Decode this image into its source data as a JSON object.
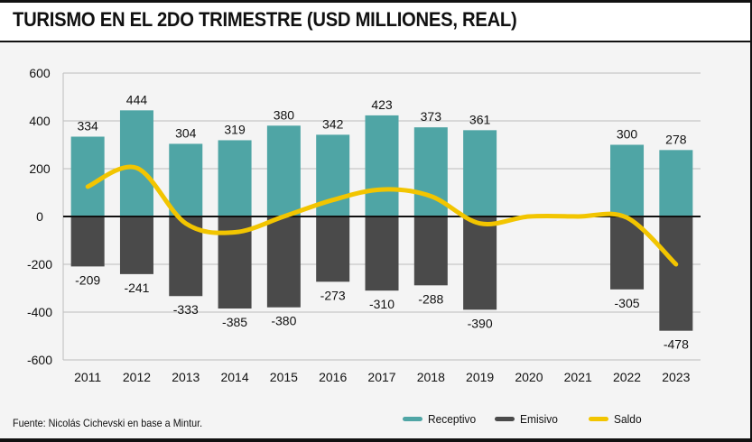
{
  "header": {
    "title": "TURISMO EN EL 2DO TRIMESTRE (USD MILLIONES, REAL)"
  },
  "footer": {
    "source": "Fuente: Nicolás Cichevski en base a Mintur."
  },
  "colors": {
    "receptivo": "#4fa5a5",
    "emisivo": "#4a4a4a",
    "saldo": "#f2c500",
    "grid": "#bdbdbd",
    "zero": "#111111"
  },
  "chart_data": {
    "type": "bar",
    "title": "TURISMO EN EL 2DO TRIMESTRE (USD MILLIONES, REAL)",
    "xlabel": "",
    "ylabel": "",
    "ylim": [
      -600,
      600
    ],
    "yticks": [
      600,
      400,
      200,
      0,
      -200,
      -400,
      -600
    ],
    "ytick_labels": [
      "600",
      "400",
      "200",
      "0",
      "-200",
      "-400",
      "-600"
    ],
    "grid": true,
    "legend": "bottom-right",
    "categories": [
      "2011",
      "2012",
      "2013",
      "2014",
      "2015",
      "2016",
      "2017",
      "2018",
      "2019",
      "2020",
      "2021",
      "2022",
      "2023"
    ],
    "series": [
      {
        "name": "Receptivo",
        "type": "bar",
        "values": [
          334,
          444,
          304,
          319,
          380,
          342,
          423,
          373,
          361,
          null,
          null,
          300,
          278
        ],
        "labels": [
          "334",
          "444",
          "304",
          "319",
          "380",
          "342",
          "423",
          "373",
          "361",
          "",
          "",
          "300",
          "278"
        ]
      },
      {
        "name": "Emisivo",
        "type": "bar",
        "values": [
          -209,
          -241,
          -333,
          -385,
          -380,
          -273,
          -310,
          -288,
          -390,
          null,
          null,
          -305,
          -478
        ],
        "labels": [
          "-209",
          "-241",
          "-333",
          "-385",
          "-380",
          "-273",
          "-310",
          "-288",
          "-390",
          "",
          "",
          "-305",
          "-478"
        ]
      },
      {
        "name": "Saldo",
        "type": "line",
        "values": [
          125,
          203,
          -29,
          -66,
          0,
          69,
          113,
          85,
          -29,
          0,
          0,
          -5,
          -200
        ]
      }
    ]
  }
}
